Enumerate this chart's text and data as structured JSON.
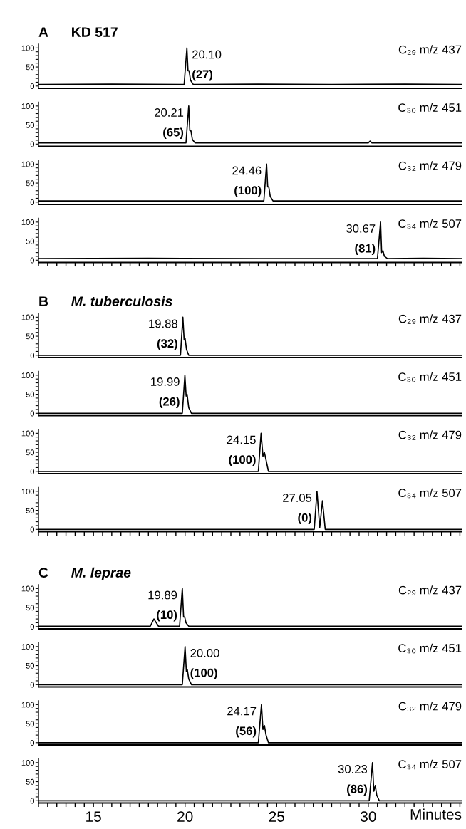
{
  "chart_data": [
    {
      "type": "line",
      "title": "A",
      "subtitle": "KD 517",
      "xlim": [
        12,
        35.1
      ],
      "ylim": [
        -6,
        110
      ],
      "tick_labels": "y",
      "yticks": [
        0,
        {
          "value": 10,
          "label": null
        },
        {
          "value": 20,
          "label": null
        },
        {
          "value": 30,
          "label": null
        },
        {
          "value": 40,
          "label": null
        },
        50,
        {
          "value": 60,
          "label": null
        },
        {
          "value": 70,
          "label": null
        },
        {
          "value": 80,
          "label": null
        },
        {
          "value": 90,
          "label": null
        },
        100
      ],
      "series": [
        {
          "name": "C₂₉ m/z 437",
          "color": "#000000",
          "x": [
            12,
            16,
            19.95,
            20.1,
            20.16,
            20.22,
            20.3,
            20.45,
            24,
            28,
            32,
            35.1
          ],
          "values": [
            4,
            5,
            4,
            100,
            40,
            40,
            15,
            4,
            5,
            4,
            5,
            4
          ]
        }
      ],
      "annotations": [
        "20.10",
        "(27)"
      ]
    },
    {
      "type": "line",
      "xlim": [
        12,
        35.1
      ],
      "ylim": [
        -6,
        110
      ],
      "tick_labels": "y",
      "yticks": [
        0,
        {
          "value": 10,
          "label": null
        },
        {
          "value": 20,
          "label": null
        },
        {
          "value": 30,
          "label": null
        },
        {
          "value": 40,
          "label": null
        },
        50,
        {
          "value": 60,
          "label": null
        },
        {
          "value": 70,
          "label": null
        },
        {
          "value": 80,
          "label": null
        },
        {
          "value": 90,
          "label": null
        },
        100
      ],
      "series": [
        {
          "name": "C₃₀ m/z 451",
          "color": "#000000",
          "x": [
            12,
            16,
            20.05,
            20.2,
            20.26,
            20.32,
            20.4,
            20.55,
            25,
            30.0,
            30.1,
            30.2,
            35.1
          ],
          "values": [
            3,
            3,
            3,
            100,
            35,
            35,
            12,
            3,
            3,
            3,
            8,
            3,
            3
          ]
        }
      ],
      "annotations": [
        "20.21",
        "(65)"
      ]
    },
    {
      "type": "line",
      "xlim": [
        12,
        35.1
      ],
      "ylim": [
        -6,
        110
      ],
      "tick_labels": "y",
      "yticks": [
        0,
        {
          "value": 10,
          "label": null
        },
        {
          "value": 20,
          "label": null
        },
        {
          "value": 30,
          "label": null
        },
        {
          "value": 40,
          "label": null
        },
        50,
        {
          "value": 60,
          "label": null
        },
        {
          "value": 70,
          "label": null
        },
        {
          "value": 80,
          "label": null
        },
        {
          "value": 90,
          "label": null
        },
        100
      ],
      "series": [
        {
          "name": "C₃₂ m/z 479",
          "color": "#000000",
          "x": [
            12,
            18,
            24.3,
            24.45,
            24.51,
            24.57,
            24.65,
            24.8,
            30,
            35.1
          ],
          "values": [
            3,
            3,
            3,
            100,
            40,
            40,
            15,
            3,
            3,
            3
          ]
        }
      ],
      "annotations": [
        "24.46",
        "(100)"
      ]
    },
    {
      "type": "line",
      "xlim": [
        12,
        35.1
      ],
      "ylim": [
        -6,
        110
      ],
      "tick_labels": "y",
      "xticks": [
        {
          "value": 12,
          "label": null
        },
        {
          "value": 12.5,
          "label": null
        },
        {
          "value": 13,
          "label": null
        },
        {
          "value": 13.5,
          "label": null
        },
        {
          "value": 14,
          "label": null
        },
        {
          "value": 14.5,
          "label": null
        },
        {
          "value": 15,
          "label": null
        },
        {
          "value": 15.5,
          "label": null
        },
        {
          "value": 16,
          "label": null
        },
        {
          "value": 16.5,
          "label": null
        },
        {
          "value": 17,
          "label": null
        },
        {
          "value": 17.5,
          "label": null
        },
        {
          "value": 18,
          "label": null
        },
        {
          "value": 18.5,
          "label": null
        },
        {
          "value": 19,
          "label": null
        },
        {
          "value": 19.5,
          "label": null
        },
        {
          "value": 20,
          "label": null
        },
        {
          "value": 20.5,
          "label": null
        },
        {
          "value": 21,
          "label": null
        },
        {
          "value": 21.5,
          "label": null
        },
        {
          "value": 22,
          "label": null
        },
        {
          "value": 22.5,
          "label": null
        },
        {
          "value": 23,
          "label": null
        },
        {
          "value": 23.5,
          "label": null
        },
        {
          "value": 24,
          "label": null
        },
        {
          "value": 24.5,
          "label": null
        },
        {
          "value": 25,
          "label": null
        },
        {
          "value": 25.5,
          "label": null
        },
        {
          "value": 26,
          "label": null
        },
        {
          "value": 26.5,
          "label": null
        },
        {
          "value": 27,
          "label": null
        },
        {
          "value": 27.5,
          "label": null
        },
        {
          "value": 28,
          "label": null
        },
        {
          "value": 28.5,
          "label": null
        },
        {
          "value": 29,
          "label": null
        },
        {
          "value": 29.5,
          "label": null
        },
        {
          "value": 30,
          "label": null
        },
        {
          "value": 30.5,
          "label": null
        },
        {
          "value": 31,
          "label": null
        },
        {
          "value": 31.5,
          "label": null
        },
        {
          "value": 32,
          "label": null
        },
        {
          "value": 32.5,
          "label": null
        },
        {
          "value": 33,
          "label": null
        },
        {
          "value": 33.5,
          "label": null
        },
        {
          "value": 34,
          "label": null
        },
        {
          "value": 34.5,
          "label": null
        },
        {
          "value": 35,
          "label": null
        }
      ],
      "yticks": [
        0,
        {
          "value": 10,
          "label": null
        },
        {
          "value": 20,
          "label": null
        },
        {
          "value": 30,
          "label": null
        },
        {
          "value": 40,
          "label": null
        },
        50,
        {
          "value": 60,
          "label": null
        },
        {
          "value": 70,
          "label": null
        },
        {
          "value": 80,
          "label": null
        },
        {
          "value": 90,
          "label": null
        },
        100
      ],
      "series": [
        {
          "name": "C₃₄ m/z 507",
          "color": "#000000",
          "x": [
            12,
            18,
            24,
            30.5,
            30.67,
            30.73,
            30.8,
            30.88,
            31.05,
            33,
            35.1
          ],
          "values": [
            4,
            5,
            4,
            4,
            100,
            20,
            25,
            10,
            4,
            5,
            4
          ]
        }
      ],
      "annotations": [
        "30.67",
        "(81)"
      ]
    },
    {
      "type": "line",
      "title": "B",
      "subtitle": "M. tuberculosis",
      "xlim": [
        12,
        35.1
      ],
      "ylim": [
        -6,
        110
      ],
      "tick_labels": "y",
      "yticks": [
        0,
        {
          "value": 10,
          "label": null
        },
        {
          "value": 20,
          "label": null
        },
        {
          "value": 30,
          "label": null
        },
        {
          "value": 40,
          "label": null
        },
        50,
        {
          "value": 60,
          "label": null
        },
        {
          "value": 70,
          "label": null
        },
        {
          "value": 80,
          "label": null
        },
        {
          "value": 90,
          "label": null
        },
        100
      ],
      "series": [
        {
          "name": "C₂₉ m/z 437",
          "color": "#000000",
          "x": [
            12,
            19.75,
            19.88,
            19.95,
            20.0,
            20.08,
            20.2,
            35.1
          ],
          "values": [
            0,
            0,
            100,
            40,
            45,
            15,
            0,
            0
          ]
        }
      ],
      "annotations": [
        "19.88",
        "(32)"
      ]
    },
    {
      "type": "line",
      "xlim": [
        12,
        35.1
      ],
      "ylim": [
        -6,
        110
      ],
      "tick_labels": "y",
      "yticks": [
        0,
        {
          "value": 10,
          "label": null
        },
        {
          "value": 20,
          "label": null
        },
        {
          "value": 30,
          "label": null
        },
        {
          "value": 40,
          "label": null
        },
        50,
        {
          "value": 60,
          "label": null
        },
        {
          "value": 70,
          "label": null
        },
        {
          "value": 80,
          "label": null
        },
        {
          "value": 90,
          "label": null
        },
        100
      ],
      "series": [
        {
          "name": "C₃₀ m/z 451",
          "color": "#000000",
          "x": [
            12,
            19.85,
            19.99,
            20.06,
            20.11,
            20.2,
            20.35,
            35.1
          ],
          "values": [
            0,
            0,
            100,
            45,
            50,
            15,
            0,
            0
          ]
        }
      ],
      "annotations": [
        "19.99",
        "(26)"
      ]
    },
    {
      "type": "line",
      "xlim": [
        12,
        35.1
      ],
      "ylim": [
        -6,
        110
      ],
      "tick_labels": "y",
      "yticks": [
        0,
        {
          "value": 10,
          "label": null
        },
        {
          "value": 20,
          "label": null
        },
        {
          "value": 30,
          "label": null
        },
        {
          "value": 40,
          "label": null
        },
        50,
        {
          "value": 60,
          "label": null
        },
        {
          "value": 70,
          "label": null
        },
        {
          "value": 80,
          "label": null
        },
        {
          "value": 90,
          "label": null
        },
        100
      ],
      "series": [
        {
          "name": "C₃₂ m/z 479",
          "color": "#000000",
          "x": [
            12,
            24.0,
            24.15,
            24.25,
            24.33,
            24.42,
            24.55,
            35.1
          ],
          "values": [
            0,
            0,
            100,
            40,
            50,
            30,
            0,
            0
          ]
        }
      ],
      "annotations": [
        "24.15",
        "(100)"
      ]
    },
    {
      "type": "line",
      "xlim": [
        12,
        35.1
      ],
      "ylim": [
        -6,
        110
      ],
      "tick_labels": "y",
      "xticks": [
        {
          "value": 12,
          "label": null
        },
        {
          "value": 12.5,
          "label": null
        },
        {
          "value": 13,
          "label": null
        },
        {
          "value": 13.5,
          "label": null
        },
        {
          "value": 14,
          "label": null
        },
        {
          "value": 14.5,
          "label": null
        },
        {
          "value": 15,
          "label": null
        },
        {
          "value": 15.5,
          "label": null
        },
        {
          "value": 16,
          "label": null
        },
        {
          "value": 16.5,
          "label": null
        },
        {
          "value": 17,
          "label": null
        },
        {
          "value": 17.5,
          "label": null
        },
        {
          "value": 18,
          "label": null
        },
        {
          "value": 18.5,
          "label": null
        },
        {
          "value": 19,
          "label": null
        },
        {
          "value": 19.5,
          "label": null
        },
        {
          "value": 20,
          "label": null
        },
        {
          "value": 20.5,
          "label": null
        },
        {
          "value": 21,
          "label": null
        },
        {
          "value": 21.5,
          "label": null
        },
        {
          "value": 22,
          "label": null
        },
        {
          "value": 22.5,
          "label": null
        },
        {
          "value": 23,
          "label": null
        },
        {
          "value": 23.5,
          "label": null
        },
        {
          "value": 24,
          "label": null
        },
        {
          "value": 24.5,
          "label": null
        },
        {
          "value": 25,
          "label": null
        },
        {
          "value": 25.5,
          "label": null
        },
        {
          "value": 26,
          "label": null
        },
        {
          "value": 26.5,
          "label": null
        },
        {
          "value": 27,
          "label": null
        },
        {
          "value": 27.5,
          "label": null
        },
        {
          "value": 28,
          "label": null
        },
        {
          "value": 28.5,
          "label": null
        },
        {
          "value": 29,
          "label": null
        },
        {
          "value": 29.5,
          "label": null
        },
        {
          "value": 30,
          "label": null
        },
        {
          "value": 30.5,
          "label": null
        },
        {
          "value": 31,
          "label": null
        },
        {
          "value": 31.5,
          "label": null
        },
        {
          "value": 32,
          "label": null
        },
        {
          "value": 32.5,
          "label": null
        },
        {
          "value": 33,
          "label": null
        },
        {
          "value": 33.5,
          "label": null
        },
        {
          "value": 34,
          "label": null
        },
        {
          "value": 34.5,
          "label": null
        },
        {
          "value": 35,
          "label": null
        }
      ],
      "yticks": [
        0,
        {
          "value": 10,
          "label": null
        },
        {
          "value": 20,
          "label": null
        },
        {
          "value": 30,
          "label": null
        },
        {
          "value": 40,
          "label": null
        },
        50,
        {
          "value": 60,
          "label": null
        },
        {
          "value": 70,
          "label": null
        },
        {
          "value": 80,
          "label": null
        },
        {
          "value": 90,
          "label": null
        },
        100
      ],
      "series": [
        {
          "name": "C₃₄ m/z 507",
          "color": "#000000",
          "x": [
            12,
            27.05,
            27.2,
            27.35,
            27.5,
            27.65,
            35.1
          ],
          "values": [
            0,
            0,
            100,
            5,
            75,
            0,
            0
          ]
        }
      ],
      "annotations": [
        "27.05",
        "(0)"
      ]
    },
    {
      "type": "line",
      "title": "C",
      "subtitle": "M. leprae",
      "xlim": [
        12,
        35.1
      ],
      "ylim": [
        -6,
        110
      ],
      "tick_labels": "y",
      "yticks": [
        0,
        {
          "value": 10,
          "label": null
        },
        {
          "value": 20,
          "label": null
        },
        {
          "value": 30,
          "label": null
        },
        {
          "value": 40,
          "label": null
        },
        50,
        {
          "value": 60,
          "label": null
        },
        {
          "value": 70,
          "label": null
        },
        {
          "value": 80,
          "label": null
        },
        {
          "value": 90,
          "label": null
        },
        100
      ],
      "series": [
        {
          "name": "C₂₉ m/z 437",
          "color": "#000000",
          "x": [
            12,
            18.1,
            18.3,
            18.55,
            19.7,
            19.85,
            19.92,
            19.98,
            20.05,
            20.2,
            35.1
          ],
          "values": [
            1,
            1,
            20,
            1,
            1,
            100,
            25,
            25,
            10,
            1,
            1
          ]
        }
      ],
      "annotations": [
        "19.89",
        "(10)"
      ]
    },
    {
      "type": "line",
      "xlim": [
        12,
        35.1
      ],
      "ylim": [
        -6,
        110
      ],
      "tick_labels": "y",
      "yticks": [
        0,
        {
          "value": 10,
          "label": null
        },
        {
          "value": 20,
          "label": null
        },
        {
          "value": 30,
          "label": null
        },
        {
          "value": 40,
          "label": null
        },
        50,
        {
          "value": 60,
          "label": null
        },
        {
          "value": 70,
          "label": null
        },
        {
          "value": 80,
          "label": null
        },
        {
          "value": 90,
          "label": null
        },
        100
      ],
      "series": [
        {
          "name": "C₃₀ m/z 451",
          "color": "#000000",
          "x": [
            12,
            19.85,
            20.0,
            20.07,
            20.12,
            20.2,
            20.35,
            35.1
          ],
          "values": [
            0,
            0,
            100,
            35,
            40,
            15,
            0,
            0
          ]
        }
      ],
      "annotations": [
        "20.00",
        "(100)"
      ]
    },
    {
      "type": "line",
      "xlim": [
        12,
        35.1
      ],
      "ylim": [
        -6,
        110
      ],
      "tick_labels": "y",
      "yticks": [
        0,
        {
          "value": 10,
          "label": null
        },
        {
          "value": 20,
          "label": null
        },
        {
          "value": 30,
          "label": null
        },
        {
          "value": 40,
          "label": null
        },
        50,
        {
          "value": 60,
          "label": null
        },
        {
          "value": 70,
          "label": null
        },
        {
          "value": 80,
          "label": null
        },
        {
          "value": 90,
          "label": null
        },
        100
      ],
      "series": [
        {
          "name": "C₃₂ m/z 479",
          "color": "#000000",
          "x": [
            12,
            24.0,
            24.17,
            24.25,
            24.33,
            24.42,
            24.55,
            35.1
          ],
          "values": [
            0,
            0,
            100,
            35,
            45,
            20,
            0,
            0
          ]
        }
      ],
      "annotations": [
        "24.17",
        "(56)"
      ]
    },
    {
      "type": "line",
      "xlabel": "Minutes",
      "xlim": [
        12,
        35.1
      ],
      "ylim": [
        -6,
        110
      ],
      "xticks": [
        {
          "value": 12,
          "label": null
        },
        {
          "value": 12.5,
          "label": null
        },
        {
          "value": 13,
          "label": null
        },
        {
          "value": 13.5,
          "label": null
        },
        {
          "value": 14,
          "label": null
        },
        {
          "value": 14.5,
          "label": null
        },
        15,
        {
          "value": 15.5,
          "label": null
        },
        {
          "value": 16,
          "label": null
        },
        {
          "value": 16.5,
          "label": null
        },
        {
          "value": 17,
          "label": null
        },
        {
          "value": 17.5,
          "label": null
        },
        {
          "value": 18,
          "label": null
        },
        {
          "value": 18.5,
          "label": null
        },
        {
          "value": 19,
          "label": null
        },
        {
          "value": 19.5,
          "label": null
        },
        20,
        {
          "value": 20.5,
          "label": null
        },
        {
          "value": 21,
          "label": null
        },
        {
          "value": 21.5,
          "label": null
        },
        {
          "value": 22,
          "label": null
        },
        {
          "value": 22.5,
          "label": null
        },
        {
          "value": 23,
          "label": null
        },
        {
          "value": 23.5,
          "label": null
        },
        {
          "value": 24,
          "label": null
        },
        {
          "value": 24.5,
          "label": null
        },
        25,
        {
          "value": 25.5,
          "label": null
        },
        {
          "value": 26,
          "label": null
        },
        {
          "value": 26.5,
          "label": null
        },
        {
          "value": 27,
          "label": null
        },
        {
          "value": 27.5,
          "label": null
        },
        {
          "value": 28,
          "label": null
        },
        {
          "value": 28.5,
          "label": null
        },
        {
          "value": 29,
          "label": null
        },
        {
          "value": 29.5,
          "label": null
        },
        30,
        {
          "value": 30.5,
          "label": null
        },
        {
          "value": 31,
          "label": null
        },
        {
          "value": 31.5,
          "label": null
        },
        {
          "value": 32,
          "label": null
        },
        {
          "value": 32.5,
          "label": null
        },
        {
          "value": 33,
          "label": null
        },
        {
          "value": 33.5,
          "label": null
        },
        {
          "value": 34,
          "label": null
        },
        {
          "value": 34.5,
          "label": null
        },
        {
          "value": 35,
          "label": null
        }
      ],
      "yticks": [
        0,
        {
          "value": 10,
          "label": null
        },
        {
          "value": 20,
          "label": null
        },
        {
          "value": 30,
          "label": null
        },
        {
          "value": 40,
          "label": null
        },
        50,
        {
          "value": 60,
          "label": null
        },
        {
          "value": 70,
          "label": null
        },
        {
          "value": 80,
          "label": null
        },
        {
          "value": 90,
          "label": null
        },
        100
      ],
      "series": [
        {
          "name": "C₃₄ m/z 507",
          "color": "#000000",
          "x": [
            12,
            30.05,
            30.23,
            30.3,
            30.38,
            30.46,
            30.6,
            35.1
          ],
          "values": [
            0,
            0,
            100,
            25,
            40,
            15,
            0,
            0
          ]
        }
      ],
      "annotations": [
        "30.23",
        "(86)"
      ]
    }
  ]
}
